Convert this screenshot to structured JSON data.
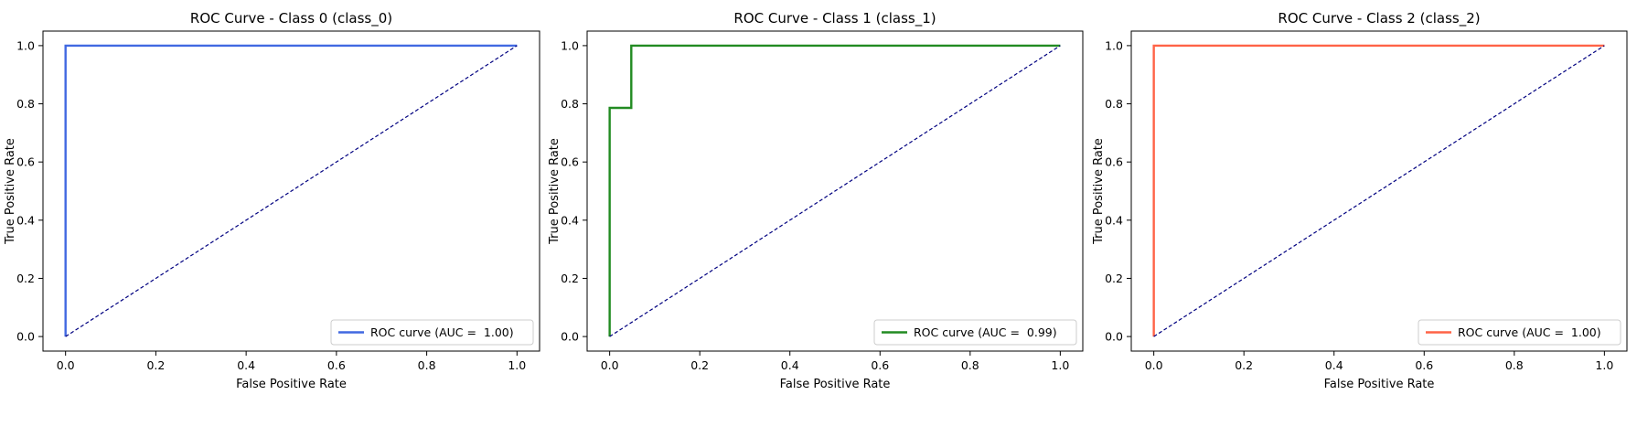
{
  "chart_data": [
    {
      "type": "line",
      "title": "ROC Curve - Class 0 (class_0)",
      "xlabel": "False Positive Rate",
      "ylabel": "True Positive Rate",
      "xlim": [
        -0.05,
        1.05
      ],
      "ylim": [
        -0.05,
        1.05
      ],
      "xticks": [
        "0.0",
        "0.2",
        "0.4",
        "0.6",
        "0.8",
        "1.0"
      ],
      "yticks": [
        "0.0",
        "0.2",
        "0.4",
        "0.6",
        "0.8",
        "1.0"
      ],
      "grid": false,
      "legend_position": "lower-right",
      "series": [
        {
          "name": "ROC curve (AUC =  1.00)",
          "color": "#4169e1",
          "x": [
            0.0,
            0.0,
            1.0
          ],
          "y": [
            0.0,
            1.0,
            1.0
          ]
        },
        {
          "color": "#000080",
          "style": "dashed",
          "x": [
            0.0,
            1.0
          ],
          "y": [
            0.0,
            1.0
          ]
        }
      ]
    },
    {
      "type": "line",
      "title": "ROC Curve - Class 1 (class_1)",
      "xlabel": "False Positive Rate",
      "ylabel": "True Positive Rate",
      "xlim": [
        -0.05,
        1.05
      ],
      "ylim": [
        -0.05,
        1.05
      ],
      "xticks": [
        "0.0",
        "0.2",
        "0.4",
        "0.6",
        "0.8",
        "1.0"
      ],
      "yticks": [
        "0.0",
        "0.2",
        "0.4",
        "0.6",
        "0.8",
        "1.0"
      ],
      "grid": false,
      "legend_position": "lower-right",
      "series": [
        {
          "name": "ROC curve (AUC =  0.99)",
          "color": "#228b22",
          "x": [
            0.0,
            0.0,
            0.048,
            0.048,
            1.0
          ],
          "y": [
            0.0,
            0.786,
            0.786,
            1.0,
            1.0
          ]
        },
        {
          "color": "#000080",
          "style": "dashed",
          "x": [
            0.0,
            1.0
          ],
          "y": [
            0.0,
            1.0
          ]
        }
      ]
    },
    {
      "type": "line",
      "title": "ROC Curve - Class 2 (class_2)",
      "xlabel": "False Positive Rate",
      "ylabel": "True Positive Rate",
      "xlim": [
        -0.05,
        1.05
      ],
      "ylim": [
        -0.05,
        1.05
      ],
      "xticks": [
        "0.0",
        "0.2",
        "0.4",
        "0.6",
        "0.8",
        "1.0"
      ],
      "yticks": [
        "0.0",
        "0.2",
        "0.4",
        "0.6",
        "0.8",
        "1.0"
      ],
      "grid": false,
      "legend_position": "lower-right",
      "series": [
        {
          "name": "ROC curve (AUC =  1.00)",
          "color": "#ff6347",
          "x": [
            0.0,
            0.0,
            1.0
          ],
          "y": [
            0.0,
            1.0,
            1.0
          ]
        },
        {
          "color": "#000080",
          "style": "dashed",
          "x": [
            0.0,
            1.0
          ],
          "y": [
            0.0,
            1.0
          ]
        }
      ]
    }
  ]
}
